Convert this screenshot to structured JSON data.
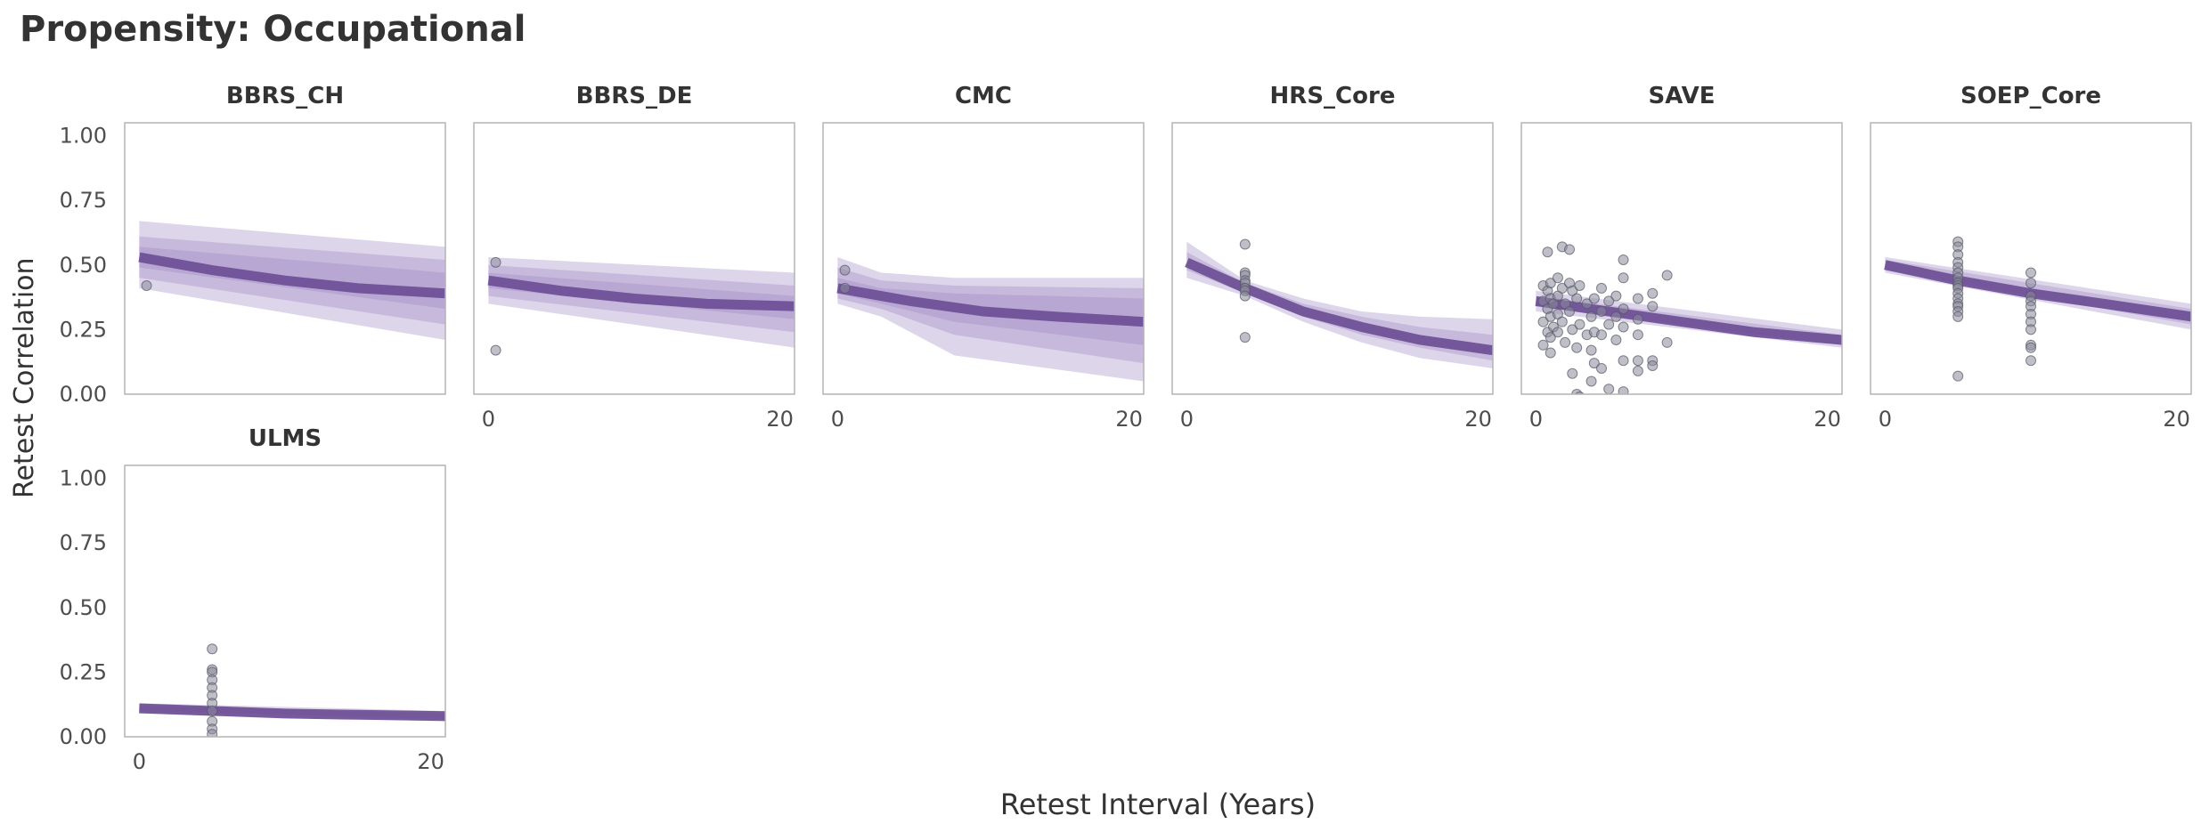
{
  "chart_data": {
    "title": "Propensity: Occupational",
    "xlabel": "Retest Interval (Years)",
    "ylabel": "Retest Correlation",
    "type": "line",
    "layout": "facet-grid",
    "xlim": [
      -1,
      21
    ],
    "ylim": [
      0,
      1.05
    ],
    "yticks": [
      "1.00",
      "0.75",
      "0.50",
      "0.25",
      "0.00"
    ],
    "xticks": [
      "0",
      "20"
    ],
    "line_color": "#6a4c93",
    "band_color": "#9e88c2",
    "point_color": "#8b8b9b",
    "grid": false,
    "panels": [
      {
        "name": "BBRS_CH",
        "fit": [
          [
            0,
            0.53
          ],
          [
            5,
            0.48
          ],
          [
            10,
            0.44
          ],
          [
            15,
            0.41
          ],
          [
            21,
            0.39
          ]
        ],
        "bands": [
          [
            [
              0,
              0.41,
              0.67
            ],
            [
              21,
              0.21,
              0.57
            ]
          ],
          [
            [
              0,
              0.45,
              0.61
            ],
            [
              21,
              0.27,
              0.52
            ]
          ],
          [
            [
              0,
              0.49,
              0.57
            ],
            [
              21,
              0.33,
              0.47
            ]
          ]
        ],
        "points": [
          [
            0.5,
            0.42
          ]
        ]
      },
      {
        "name": "BBRS_DE",
        "fit": [
          [
            0,
            0.44
          ],
          [
            5,
            0.4
          ],
          [
            10,
            0.37
          ],
          [
            15,
            0.35
          ],
          [
            21,
            0.34
          ]
        ],
        "bands": [
          [
            [
              0,
              0.35,
              0.53
            ],
            [
              21,
              0.18,
              0.47
            ]
          ],
          [
            [
              0,
              0.38,
              0.5
            ],
            [
              21,
              0.24,
              0.42
            ]
          ],
          [
            [
              0,
              0.41,
              0.47
            ],
            [
              21,
              0.29,
              0.38
            ]
          ]
        ],
        "points": [
          [
            0.5,
            0.51
          ],
          [
            0.5,
            0.17
          ]
        ]
      },
      {
        "name": "CMC",
        "fit": [
          [
            0,
            0.41
          ],
          [
            5,
            0.36
          ],
          [
            10,
            0.32
          ],
          [
            15,
            0.3
          ],
          [
            21,
            0.28
          ]
        ],
        "bands": [
          [
            [
              0,
              0.35,
              0.53
            ],
            [
              3,
              0.3,
              0.47
            ],
            [
              8,
              0.15,
              0.45
            ],
            [
              21,
              0.05,
              0.45
            ]
          ],
          [
            [
              0,
              0.37,
              0.49
            ],
            [
              3,
              0.33,
              0.44
            ],
            [
              8,
              0.23,
              0.42
            ],
            [
              21,
              0.12,
              0.41
            ]
          ],
          [
            [
              0,
              0.39,
              0.45
            ],
            [
              3,
              0.35,
              0.41
            ],
            [
              8,
              0.28,
              0.39
            ],
            [
              21,
              0.19,
              0.37
            ]
          ]
        ],
        "points": [
          [
            0.5,
            0.48
          ],
          [
            0.5,
            0.41
          ]
        ]
      },
      {
        "name": "HRS_Core",
        "fit": [
          [
            0,
            0.51
          ],
          [
            4,
            0.41
          ],
          [
            8,
            0.32
          ],
          [
            12,
            0.26
          ],
          [
            16,
            0.21
          ],
          [
            21,
            0.17
          ]
        ],
        "bands": [
          [
            [
              0,
              0.45,
              0.59
            ],
            [
              4,
              0.38,
              0.44
            ],
            [
              8,
              0.28,
              0.37
            ],
            [
              12,
              0.2,
              0.32
            ],
            [
              16,
              0.14,
              0.3
            ],
            [
              21,
              0.1,
              0.29
            ]
          ],
          [
            [
              0,
              0.48,
              0.55
            ],
            [
              4,
              0.39,
              0.43
            ],
            [
              8,
              0.3,
              0.35
            ],
            [
              12,
              0.23,
              0.3
            ],
            [
              16,
              0.18,
              0.26
            ],
            [
              21,
              0.13,
              0.23
            ]
          ]
        ],
        "points": [
          [
            4,
            0.58
          ],
          [
            4,
            0.47
          ],
          [
            4,
            0.46
          ],
          [
            4,
            0.44
          ],
          [
            4,
            0.43
          ],
          [
            4,
            0.41
          ],
          [
            4,
            0.4
          ],
          [
            4,
            0.38
          ],
          [
            4,
            0.22
          ]
        ]
      },
      {
        "name": "SAVE",
        "fit": [
          [
            0,
            0.36
          ],
          [
            5,
            0.32
          ],
          [
            10,
            0.28
          ],
          [
            15,
            0.24
          ],
          [
            21,
            0.21
          ]
        ],
        "bands": [
          [
            [
              0,
              0.32,
              0.4
            ],
            [
              21,
              0.18,
              0.25
            ]
          ],
          [
            [
              0,
              0.34,
              0.38
            ],
            [
              21,
              0.19,
              0.23
            ]
          ]
        ],
        "points": [
          [
            0.5,
            0.42
          ],
          [
            0.5,
            0.36
          ],
          [
            0.5,
            0.28
          ],
          [
            0.5,
            0.19
          ],
          [
            0.8,
            0.55
          ],
          [
            0.8,
            0.4
          ],
          [
            0.8,
            0.33
          ],
          [
            0.8,
            0.24
          ],
          [
            1,
            0.43
          ],
          [
            1,
            0.37
          ],
          [
            1,
            0.3
          ],
          [
            1,
            0.22
          ],
          [
            1,
            0.16
          ],
          [
            1.2,
            0.35
          ],
          [
            1.2,
            0.26
          ],
          [
            1.5,
            0.45
          ],
          [
            1.5,
            0.38
          ],
          [
            1.5,
            0.31
          ],
          [
            1.5,
            0.24
          ],
          [
            1.8,
            0.57
          ],
          [
            1.8,
            0.41
          ],
          [
            1.8,
            0.28
          ],
          [
            2,
            0.35
          ],
          [
            2,
            0.2
          ],
          [
            2.3,
            0.56
          ],
          [
            2.3,
            0.43
          ],
          [
            2.3,
            0.32
          ],
          [
            2.5,
            0.4
          ],
          [
            2.5,
            0.25
          ],
          [
            2.5,
            0.08
          ],
          [
            2.8,
            0.37
          ],
          [
            2.8,
            0.18
          ],
          [
            2.8,
            0.0
          ],
          [
            3,
            0.42
          ],
          [
            3,
            0.27
          ],
          [
            3,
            -0.01
          ],
          [
            3.5,
            0.35
          ],
          [
            3.5,
            0.23
          ],
          [
            3.8,
            0.3
          ],
          [
            3.8,
            0.17
          ],
          [
            3.8,
            0.05
          ],
          [
            4,
            0.37
          ],
          [
            4,
            0.24
          ],
          [
            4,
            0.12
          ],
          [
            4.5,
            0.41
          ],
          [
            4.5,
            0.32
          ],
          [
            4.5,
            0.23
          ],
          [
            4.5,
            0.1
          ],
          [
            5,
            0.36
          ],
          [
            5,
            0.27
          ],
          [
            5,
            0.02
          ],
          [
            5.5,
            0.38
          ],
          [
            5.5,
            0.3
          ],
          [
            5.5,
            0.21
          ],
          [
            6,
            0.52
          ],
          [
            6,
            0.45
          ],
          [
            6,
            0.33
          ],
          [
            6,
            0.26
          ],
          [
            6,
            0.13
          ],
          [
            6,
            0.01
          ],
          [
            7,
            0.37
          ],
          [
            7,
            0.29
          ],
          [
            7,
            0.23
          ],
          [
            7,
            0.13
          ],
          [
            7,
            0.09
          ],
          [
            8,
            0.39
          ],
          [
            8,
            0.34
          ],
          [
            8,
            0.13
          ],
          [
            8,
            0.11
          ],
          [
            9,
            0.2
          ],
          [
            9,
            0.46
          ]
        ]
      },
      {
        "name": "SOEP_Core",
        "fit": [
          [
            0,
            0.5
          ],
          [
            5,
            0.44
          ],
          [
            10,
            0.39
          ],
          [
            15,
            0.35
          ],
          [
            21,
            0.3
          ]
        ],
        "bands": [
          [
            [
              0,
              0.47,
              0.53
            ],
            [
              21,
              0.25,
              0.35
            ]
          ],
          [
            [
              0,
              0.48,
              0.52
            ],
            [
              21,
              0.27,
              0.33
            ]
          ]
        ],
        "points": [
          [
            5,
            0.59
          ],
          [
            5,
            0.57
          ],
          [
            5,
            0.54
          ],
          [
            5,
            0.51
          ],
          [
            5,
            0.49
          ],
          [
            5,
            0.47
          ],
          [
            5,
            0.45
          ],
          [
            5,
            0.43
          ],
          [
            5,
            0.42
          ],
          [
            5,
            0.41
          ],
          [
            5,
            0.39
          ],
          [
            5,
            0.37
          ],
          [
            5,
            0.35
          ],
          [
            5,
            0.34
          ],
          [
            5,
            0.32
          ],
          [
            5,
            0.3
          ],
          [
            5,
            0.07
          ],
          [
            10,
            0.47
          ],
          [
            10,
            0.43
          ],
          [
            10,
            0.38
          ],
          [
            10,
            0.36
          ],
          [
            10,
            0.34
          ],
          [
            10,
            0.31
          ],
          [
            10,
            0.28
          ],
          [
            10,
            0.25
          ],
          [
            10,
            0.19
          ],
          [
            10,
            0.18
          ],
          [
            10,
            0.13
          ]
        ]
      },
      {
        "name": "ULMS",
        "fit": [
          [
            0,
            0.11
          ],
          [
            5,
            0.1
          ],
          [
            10,
            0.09
          ],
          [
            15,
            0.085
          ],
          [
            21,
            0.08
          ]
        ],
        "bands": [
          [
            [
              0,
              0.09,
              0.13
            ],
            [
              21,
              0.06,
              0.1
            ]
          ],
          [
            [
              0,
              0.1,
              0.12
            ],
            [
              21,
              0.07,
              0.09
            ]
          ]
        ],
        "points": [
          [
            5,
            0.34
          ],
          [
            5,
            0.26
          ],
          [
            5,
            0.25
          ],
          [
            5,
            0.22
          ],
          [
            5,
            0.19
          ],
          [
            5,
            0.16
          ],
          [
            5,
            0.13
          ],
          [
            5,
            0.1
          ],
          [
            5,
            0.06
          ],
          [
            5,
            0.03
          ],
          [
            5,
            0.01
          ]
        ]
      }
    ]
  }
}
